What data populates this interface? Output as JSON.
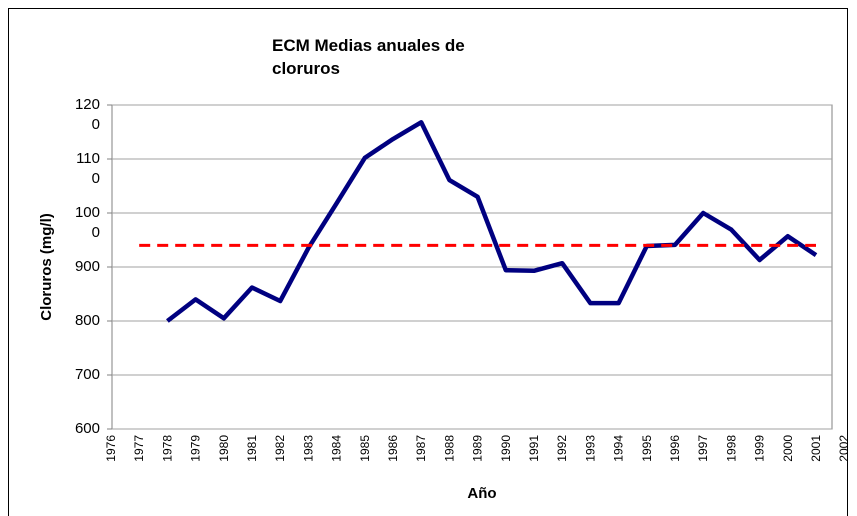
{
  "chart_data": {
    "type": "line",
    "title": "ECM Medias anuales de cloruros",
    "xlabel": "Año",
    "ylabel": "Cloruros (mg/l)",
    "categories": [
      "1976",
      "1977",
      "1978",
      "1979",
      "1980",
      "1981",
      "1982",
      "1983",
      "1984",
      "1985",
      "1986",
      "1987",
      "1988",
      "1989",
      "1990",
      "1991",
      "1992",
      "1993",
      "1994",
      "1995",
      "1996",
      "1997",
      "1998",
      "1999",
      "2000",
      "2001",
      "2002"
    ],
    "series": [
      {
        "color": "#000080",
        "dash": false,
        "values": [
          null,
          null,
          800,
          840,
          805,
          862,
          837,
          935,
          1018,
          1102,
          1137,
          1168,
          1061,
          1030,
          894,
          893,
          907,
          833,
          833,
          939,
          941,
          1000,
          969,
          913,
          957,
          922,
          null
        ]
      },
      {
        "color": "#ff0000",
        "dash": true,
        "values": [
          null,
          940,
          940,
          940,
          940,
          940,
          940,
          940,
          940,
          940,
          940,
          940,
          940,
          940,
          940,
          940,
          940,
          940,
          940,
          940,
          940,
          940,
          940,
          940,
          940,
          940,
          null
        ]
      }
    ],
    "ylim": [
      600,
      1200
    ],
    "yticks": [
      600,
      700,
      800,
      900,
      1000,
      1100,
      1200
    ],
    "grid": true
  }
}
